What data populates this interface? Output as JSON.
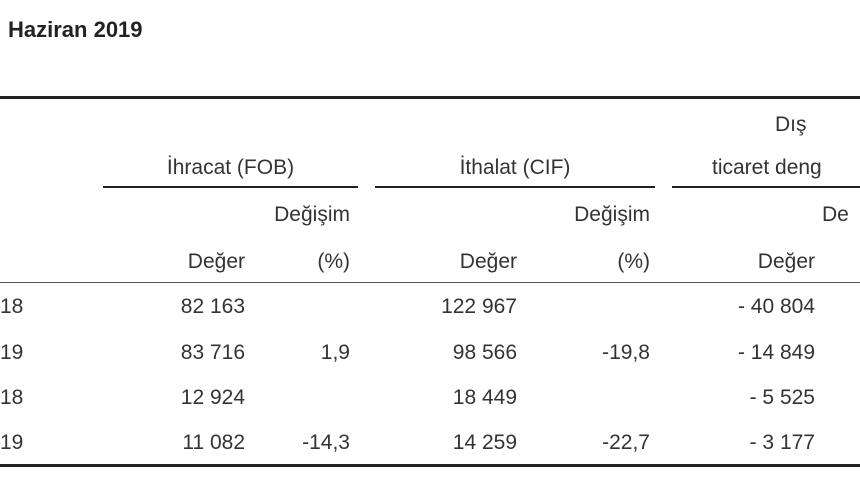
{
  "header": {
    "title": "Haziran 2019"
  },
  "table": {
    "group_headers": {
      "dis": "Dış",
      "ihracat": "İhracat (FOB)",
      "ithalat": "İthalat (CIF)",
      "denge": "ticaret deng"
    },
    "sub_headers": [
      "Değişim",
      "Değişim",
      "De"
    ],
    "column_headers": [
      "Değer",
      "(%)",
      "Değer",
      "(%)",
      "Değer"
    ],
    "rows": [
      [
        "18",
        "82 163",
        null,
        "122 967",
        null,
        "- 40 804"
      ],
      [
        "19",
        "83 716",
        "1,9",
        "98 566",
        "-19,8",
        "- 14 849"
      ],
      [
        "18",
        "12 924",
        null,
        "18 449",
        null,
        "- 5 525"
      ],
      [
        "19",
        "11 082",
        "-14,3",
        "14 259",
        "-22,7",
        "- 3 177"
      ]
    ]
  }
}
